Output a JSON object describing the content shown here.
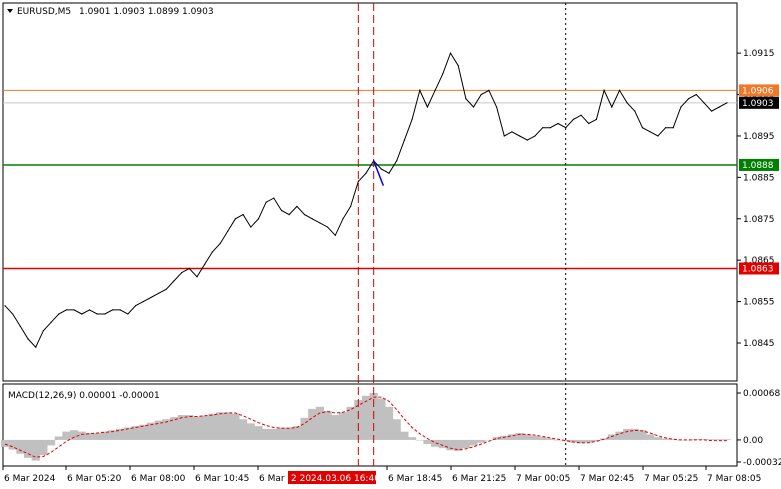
{
  "header": {
    "symbol": "EURUSD,M5",
    "ohlc": "1.0901 1.0903 1.0899 1.0903"
  },
  "macd": {
    "label": "MACD(12,26,9) 0.00001 -0.00001",
    "ticks": [
      "0.00068",
      "0.00",
      "-0.00032"
    ]
  },
  "colors": {
    "resistance": "#f07828",
    "target": "#008000",
    "stop": "#e00000",
    "current": "#000000",
    "signal_line": "#e00000",
    "histogram": "#c0c0c0",
    "vline": "#d00000",
    "blue_tick": "#0000ff"
  },
  "chart_data": {
    "type": "line",
    "symbol": "EURUSD",
    "timeframe": "M5",
    "ylim": [
      1.0838,
      1.0923
    ],
    "y_ticks": [
      "1.0915",
      "1.0905",
      "1.0895",
      "1.0885",
      "1.0875",
      "1.0865",
      "1.0855",
      "1.0845"
    ],
    "x_ticks": [
      "6 Mar 2024",
      "6 Mar 05:20",
      "6 Mar 08:00",
      "6 Mar 10:45",
      "6 Mar 1",
      "6 Mar 18:45",
      "6 Mar 21:25",
      "7 Mar 00:05",
      "7 Mar 02:45",
      "7 Mar 05:25",
      "7 Mar 08:05"
    ],
    "x_marker_label": "2 2024.03.06 16:40",
    "horizontal_levels": [
      {
        "value": 1.0906,
        "label": "1.0906",
        "color": "#f07828"
      },
      {
        "value": 1.0903,
        "label": "1.0903",
        "color": "#000000"
      },
      {
        "value": 1.0888,
        "label": "1.0888",
        "color": "#008000"
      },
      {
        "value": 1.0863,
        "label": "1.0863",
        "color": "#e00000"
      }
    ],
    "price": [
      1.0854,
      1.0852,
      1.0849,
      1.0846,
      1.0844,
      1.0848,
      1.085,
      1.0852,
      1.0853,
      1.0853,
      1.0852,
      1.0853,
      1.0852,
      1.0852,
      1.0853,
      1.0853,
      1.0852,
      1.0854,
      1.0855,
      1.0856,
      1.0857,
      1.0858,
      1.086,
      1.0862,
      1.0863,
      1.0861,
      1.0864,
      1.0867,
      1.0869,
      1.0872,
      1.0875,
      1.0876,
      1.0873,
      1.0875,
      1.0879,
      1.088,
      1.0877,
      1.0876,
      1.0878,
      1.0876,
      1.0875,
      1.0874,
      1.0873,
      1.0871,
      1.0875,
      1.0878,
      1.0884,
      1.0886,
      1.0889,
      1.0887,
      1.0886,
      1.0889,
      1.0894,
      1.0899,
      1.0906,
      1.0902,
      1.0906,
      1.091,
      1.0915,
      1.0912,
      1.0904,
      1.0902,
      1.0905,
      1.0906,
      1.0902,
      1.0895,
      1.0896,
      1.0895,
      1.0894,
      1.0895,
      1.0897,
      1.0897,
      1.0898,
      1.0897,
      1.0899,
      1.09,
      1.0898,
      1.0899,
      1.0906,
      1.0902,
      1.0906,
      1.0903,
      1.0901,
      1.0897,
      1.0896,
      1.0895,
      1.0897,
      1.0897,
      1.0902,
      1.0904,
      1.0905,
      1.0903,
      1.0901,
      1.0902,
      1.0903
    ],
    "macd_histogram": [
      -0.0001,
      -0.00014,
      -0.0002,
      -0.00026,
      -0.0003,
      -0.00022,
      -8e-05,
      5e-05,
      0.00012,
      0.00014,
      0.00012,
      0.0001,
      0.0001,
      0.00012,
      0.00014,
      0.00016,
      0.00018,
      0.0002,
      0.00022,
      0.00025,
      0.00028,
      0.0003,
      0.00033,
      0.00036,
      0.00036,
      0.00034,
      0.00035,
      0.00038,
      0.0004,
      0.0004,
      0.00038,
      0.0003,
      0.00024,
      0.0002,
      0.00016,
      0.00016,
      0.00018,
      0.00018,
      0.0002,
      0.00032,
      0.00045,
      0.00048,
      0.00042,
      0.00036,
      0.0004,
      0.00048,
      0.00058,
      0.00064,
      0.00068,
      0.0006,
      0.00048,
      0.0003,
      0.00012,
      4e-05,
      0.0,
      -6e-05,
      -0.0001,
      -0.00012,
      -0.00015,
      -0.00016,
      -0.00012,
      -8e-05,
      -4e-05,
      0.0,
      4e-05,
      6e-05,
      8e-05,
      0.0001,
      8e-05,
      6e-05,
      4e-05,
      2e-05,
      0.0,
      -2e-05,
      -4e-05,
      -5e-05,
      -4e-05,
      -2e-05,
      2e-05,
      8e-05,
      0.00012,
      0.00016,
      0.00016,
      0.00014,
      8e-05,
      4e-05,
      2e-05,
      1e-05,
      0.0,
      0.0,
      1e-05,
      1e-05,
      1e-05,
      1e-05,
      1e-05
    ],
    "macd_signal": [
      -6e-05,
      -0.0001,
      -0.00015,
      -0.0002,
      -0.00025,
      -0.00024,
      -0.00018,
      -0.0001,
      -2e-05,
      4e-05,
      8e-05,
      9e-05,
      0.0001,
      0.00011,
      0.00012,
      0.00014,
      0.00016,
      0.00018,
      0.0002,
      0.00022,
      0.00024,
      0.00026,
      0.00029,
      0.00032,
      0.00034,
      0.00034,
      0.00035,
      0.00036,
      0.00038,
      0.00039,
      0.00039,
      0.00035,
      0.0003,
      0.00025,
      0.00021,
      0.00018,
      0.00017,
      0.00017,
      0.00018,
      0.00024,
      0.00032,
      0.00039,
      0.00041,
      0.00039,
      0.0004,
      0.00044,
      0.0005,
      0.00056,
      0.00062,
      0.00062,
      0.00056,
      0.00044,
      0.0003,
      0.00018,
      9e-05,
      2e-05,
      -4e-05,
      -8e-05,
      -0.00012,
      -0.00014,
      -0.00013,
      -0.0001,
      -6e-05,
      -2e-05,
      2e-05,
      4e-05,
      6e-05,
      8e-05,
      8e-05,
      7e-05,
      5e-05,
      3e-05,
      1e-05,
      -1e-05,
      -3e-05,
      -4e-05,
      -4e-05,
      -2e-05,
      1e-05,
      5e-05,
      9e-05,
      0.00012,
      0.00014,
      0.00013,
      0.0001,
      6e-05,
      3e-05,
      1e-05,
      0.0,
      0.0,
      0.0,
      0.0,
      -1e-05,
      -1e-05,
      -1e-05
    ],
    "macd_ylim": [
      -0.00032,
      0.00068
    ],
    "vertical_markers": [
      {
        "index": 46,
        "style": "dashed",
        "color": "#d00000"
      },
      {
        "index": 48,
        "style": "dashed",
        "color": "#d00000"
      },
      {
        "index": 73,
        "style": "dotted",
        "color": "#000000"
      }
    ],
    "signal_segment": {
      "from_index": 48,
      "to_index": 49,
      "from_value": 1.0889,
      "to_value": 1.0883,
      "color": "#0000ff"
    },
    "grid": false
  }
}
